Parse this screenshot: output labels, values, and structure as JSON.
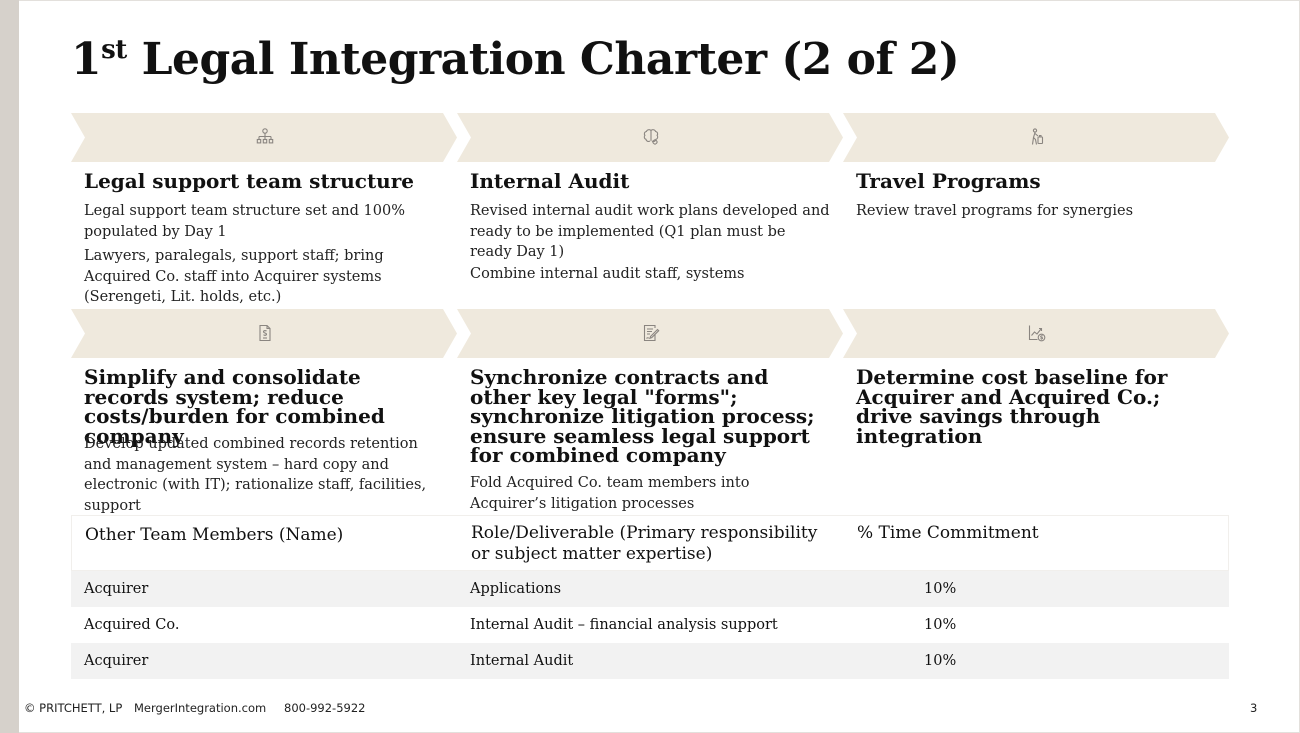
{
  "title": {
    "number": "1",
    "superscript": "st",
    "text": " Legal Integration Charter (2 of 2)"
  },
  "colors": {
    "chevron": "#efe9dd",
    "accent_bar": "#d6d1cb",
    "icon": "#8a8580",
    "row_alt": "#f2f2f2"
  },
  "cards": [
    {
      "icon": "org-chart-icon",
      "heading": "Legal support team structure",
      "bullets": [
        "Legal support team structure set and 100% populated by Day 1",
        "Lawyers, paralegals, support staff; bring Acquired Co. staff into Acquirer systems (Serengeti, Lit. holds, etc.)"
      ]
    },
    {
      "icon": "brain-gear-icon",
      "heading": "Internal Audit",
      "bullets": [
        "Revised internal audit work plans developed and ready to be implemented (Q1 plan must be ready Day 1)",
        "Combine internal audit staff, systems"
      ]
    },
    {
      "icon": "traveler-luggage-icon",
      "heading": "Travel Programs",
      "bullets": [
        "Review travel programs for synergies"
      ]
    },
    {
      "icon": "dollar-document-icon",
      "heading": "Simplify and consolidate records system; reduce costs/burden for combined company",
      "bullets": [
        "Develop updated combined records retention and management system – hard copy and electronic (with IT); rationalize staff, facilities, support"
      ]
    },
    {
      "icon": "contract-signature-icon",
      "heading": "Synchronize contracts and other key legal \"forms\"; synchronize litigation process; ensure seamless legal support for combined company",
      "bullets": [
        "Fold Acquired Co. team members into Acquirer’s litigation processes"
      ]
    },
    {
      "icon": "chart-dollar-icon",
      "heading": "Determine cost baseline for Acquirer and Acquired Co.; drive savings through integration",
      "bullets": []
    }
  ],
  "table": {
    "headers": [
      "Other Team Members (Name)",
      "Role/Deliverable (Primary responsibility or subject matter expertise)",
      "% Time Commitment"
    ],
    "rows": [
      [
        "Acquirer",
        "Applications",
        "10%"
      ],
      [
        "Acquired Co.",
        "Internal Audit – financial analysis support",
        "10%"
      ],
      [
        "Acquirer",
        "Internal Audit",
        "10%"
      ]
    ]
  },
  "footer": {
    "copyright": "© PRITCHETT, LP",
    "website": "MergerIntegration.com",
    "phone": "800-992-5922",
    "page": "3"
  }
}
